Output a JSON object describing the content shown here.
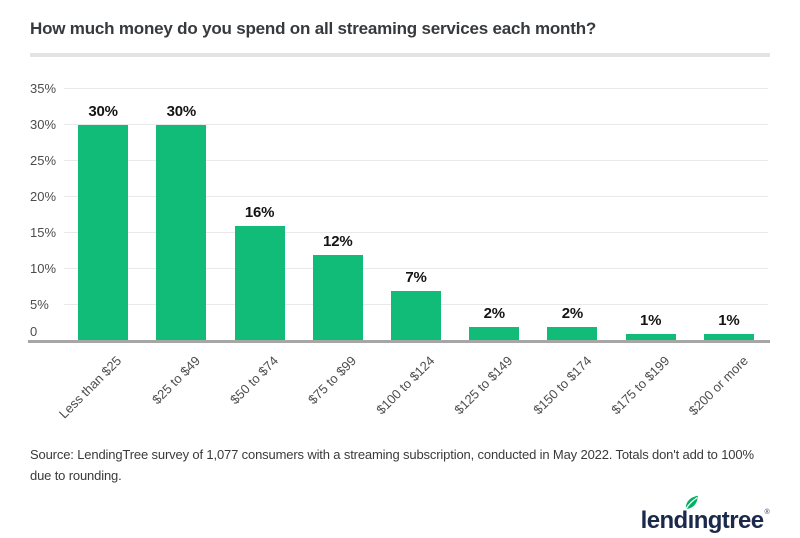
{
  "title": "How much money do you spend on all streaming services each month?",
  "chart_data": {
    "type": "bar",
    "title": "How much money do you spend on all streaming services each month?",
    "categories": [
      "Less than $25",
      "$25 to $49",
      "$50 to $74",
      "$75 to $99",
      "$100 to $124",
      "$125 to $149",
      "$150 to $174",
      "$175 to $199",
      "$200 or more"
    ],
    "values": [
      30,
      30,
      16,
      12,
      7,
      2,
      2,
      1,
      1
    ],
    "value_labels": [
      "30%",
      "30%",
      "16%",
      "12%",
      "7%",
      "2%",
      "2%",
      "1%",
      "1%"
    ],
    "xlabel": "",
    "ylabel": "",
    "ylim": [
      0,
      35
    ],
    "y_ticks": [
      {
        "value": 0,
        "label": "0"
      },
      {
        "value": 5,
        "label": "5%"
      },
      {
        "value": 10,
        "label": "10%"
      },
      {
        "value": 15,
        "label": "15%"
      },
      {
        "value": 20,
        "label": "20%"
      },
      {
        "value": 25,
        "label": "25%"
      },
      {
        "value": 30,
        "label": "30%"
      },
      {
        "value": 35,
        "label": "35%"
      }
    ],
    "grid": "horizontal",
    "legend": "none",
    "bar_color": "#10bc77"
  },
  "source_note": "Source: LendingTree survey of 1,077 consumers with a streaming subscription, conducted in May 2022. Totals don't add to 100% due to rounding.",
  "logo": {
    "text_left": "lend",
    "text_i": "ı",
    "text_right": "ngtree",
    "registered": "®",
    "text_color": "#1b2a4c",
    "leaf_color": "#00b164"
  }
}
